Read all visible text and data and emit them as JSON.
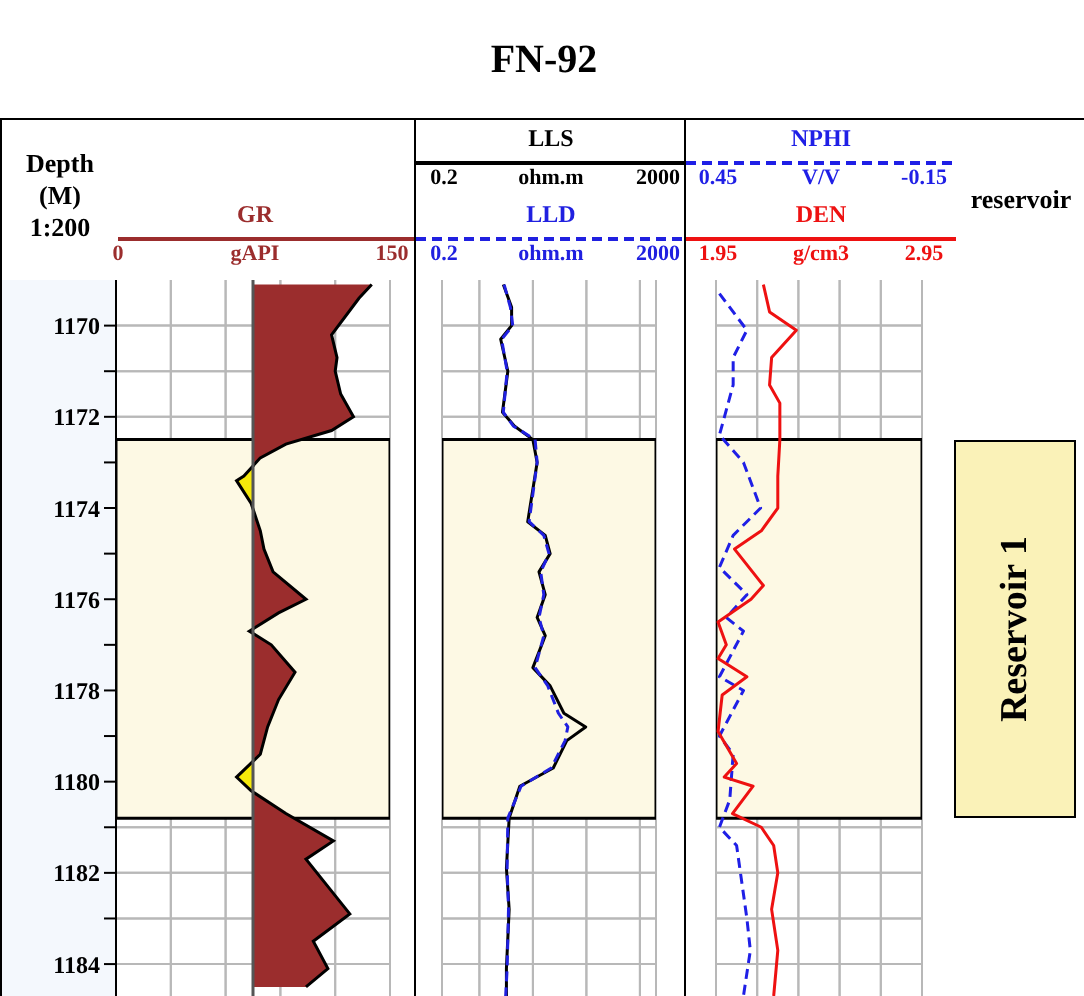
{
  "chart_data": [
    {
      "type": "area",
      "orientation": "horizontal",
      "ylabel": "Depth\n(M)\n1:200",
      "xlabel": "gAPI",
      "xlim": [
        0,
        150
      ],
      "xticks": [
        0,
        {
          "value": 30,
          "label": null
        },
        {
          "value": 60,
          "label": null
        },
        {
          "value": 90,
          "label": null
        },
        {
          "value": 120,
          "label": null
        },
        150
      ],
      "ylim": [
        1184.7,
        1169
      ],
      "yticks": [
        1170,
        {
          "value": 1171,
          "label": null
        },
        1172,
        {
          "value": 1173,
          "label": null
        },
        1174,
        {
          "value": 1175,
          "label": null
        },
        1176,
        {
          "value": 1177,
          "label": null
        },
        1178,
        {
          "value": 1179,
          "label": null
        },
        1180,
        {
          "value": 1181,
          "label": null
        },
        1182,
        {
          "value": 1183,
          "label": null
        },
        1184
      ],
      "grid": true,
      "ref_lines": [
        {
          "axis": "x",
          "value": 75
        }
      ],
      "bands": [
        {
          "axis": "y",
          "from": 1172.5,
          "to": 1180.8,
          "color": "#fdf9e4"
        }
      ],
      "series": [
        {
          "name": "GR",
          "color": "#9b2d2d",
          "x": [
            1169.1,
            1169.4,
            1170.2,
            1170.7,
            1171.0,
            1171.5,
            1172.0,
            1172.3,
            1172.6,
            1172.9,
            1173.3,
            1173.4,
            1173.9,
            1174.5,
            1174.9,
            1175.4,
            1176.0,
            1176.3,
            1176.7,
            1177.0,
            1177.6,
            1178.2,
            1178.8,
            1179.4,
            1179.9,
            1180.2,
            1180.7,
            1181.3,
            1181.7,
            1182.9,
            1183.5,
            1184.1,
            1184.5
          ],
          "values": [
            140,
            133,
            118,
            121,
            120,
            123,
            130,
            118,
            93,
            79,
            70,
            66,
            74,
            79,
            81,
            86,
            104,
            89,
            73,
            85,
            98,
            89,
            83,
            79,
            66,
            74,
            93,
            119,
            104,
            128,
            108,
            116,
            104
          ]
        }
      ]
    },
    {
      "type": "line",
      "orientation": "horizontal",
      "title": "FN-92",
      "log": "x",
      "tick_labels": "x",
      "xlabel": "ohm.m",
      "x2label": "ohm.m",
      "xlim": [
        0.2,
        2000
      ],
      "xticks": [
        0.2,
        {
          "value": 1,
          "label": null
        },
        {
          "value": 10,
          "label": null
        },
        {
          "value": 100,
          "label": null
        },
        {
          "value": 1000,
          "label": null
        },
        2000
      ],
      "x2lim": [
        0.2,
        2000
      ],
      "x2ticks": [
        0.2,
        2000
      ],
      "ylim": [
        1184.7,
        1169
      ],
      "yticks": [
        {
          "value": 1170,
          "label": null
        },
        {
          "value": 1171,
          "label": null
        },
        {
          "value": 1172,
          "label": null
        },
        {
          "value": 1173,
          "label": null
        },
        {
          "value": 1174,
          "label": null
        },
        {
          "value": 1175,
          "label": null
        },
        {
          "value": 1176,
          "label": null
        },
        {
          "value": 1177,
          "label": null
        },
        {
          "value": 1178,
          "label": null
        },
        {
          "value": 1179,
          "label": null
        },
        {
          "value": 1180,
          "label": null
        },
        {
          "value": 1181,
          "label": null
        },
        {
          "value": 1182,
          "label": null
        },
        {
          "value": 1183,
          "label": null
        },
        {
          "value": 1184,
          "label": null
        }
      ],
      "grid": true,
      "bands": [
        {
          "axis": "y",
          "from": 1172.5,
          "to": 1180.8,
          "color": "#fdf9e4"
        }
      ],
      "series": [
        {
          "name": "LLS",
          "color": "#000000",
          "x": [
            1169.1,
            1169.6,
            1170.0,
            1170.3,
            1171.0,
            1171.9,
            1172.2,
            1172.5,
            1173.0,
            1174.3,
            1174.6,
            1175.0,
            1175.4,
            1175.9,
            1176.4,
            1176.8,
            1177.5,
            1177.9,
            1178.5,
            1178.8,
            1179.1,
            1179.7,
            1180.1,
            1180.8,
            1181.9,
            1182.8,
            1184.1,
            1184.7
          ],
          "values": [
            2.8,
            4,
            4,
            2.5,
            3.4,
            2.7,
            4.5,
            10,
            12,
            8,
            17,
            21,
            13,
            17,
            12,
            17,
            10,
            21,
            38,
            97,
            43,
            24,
            5.7,
            3.6,
            3.2,
            3.6,
            3.2,
            3.2
          ]
        },
        {
          "name": "LLD",
          "color": "#2020e0",
          "line_style": "dashed",
          "x": [
            1169.1,
            1169.6,
            1170.0,
            1170.3,
            1171.0,
            1171.9,
            1172.2,
            1172.5,
            1173.0,
            1174.3,
            1174.6,
            1175.0,
            1175.4,
            1175.9,
            1176.4,
            1176.8,
            1177.5,
            1177.9,
            1178.5,
            1178.8,
            1179.1,
            1179.7,
            1180.1,
            1180.8,
            1181.9,
            1182.8,
            1184.1,
            1184.7
          ],
          "values": [
            2.9,
            3.8,
            4.2,
            2.6,
            3.3,
            2.8,
            4.3,
            11,
            12,
            8.5,
            16,
            20,
            14,
            16,
            13,
            16,
            11,
            19,
            30,
            45,
            40,
            22,
            6,
            3.4,
            3.3,
            3.5,
            3.3,
            3.1
          ]
        }
      ]
    },
    {
      "type": "line",
      "orientation": "horizontal",
      "tick_labels": "x",
      "xlabel": "g/cm3",
      "x2label": "V/V",
      "xlim": [
        1.95,
        2.95
      ],
      "xticks": [
        1.95,
        {
          "value": 2.15,
          "label": null
        },
        {
          "value": 2.35,
          "label": null
        },
        {
          "value": 2.55,
          "label": null
        },
        {
          "value": 2.75,
          "label": null
        },
        2.95
      ],
      "x2lim": [
        0.45,
        -0.15
      ],
      "x2ticks": [
        0.45,
        -0.15
      ],
      "ylim": [
        1184.7,
        1169
      ],
      "yticks": [
        {
          "value": 1170,
          "label": null
        },
        {
          "value": 1171,
          "label": null
        },
        {
          "value": 1172,
          "label": null
        },
        {
          "value": 1173,
          "label": null
        },
        {
          "value": 1174,
          "label": null
        },
        {
          "value": 1175,
          "label": null
        },
        {
          "value": 1176,
          "label": null
        },
        {
          "value": 1177,
          "label": null
        },
        {
          "value": 1178,
          "label": null
        },
        {
          "value": 1179,
          "label": null
        },
        {
          "value": 1180,
          "label": null
        },
        {
          "value": 1181,
          "label": null
        },
        {
          "value": 1182,
          "label": null
        },
        {
          "value": 1183,
          "label": null
        },
        {
          "value": 1184,
          "label": null
        }
      ],
      "grid": true,
      "annotations": [
        "reservoir"
      ],
      "bands": [
        {
          "axis": "y",
          "from": 1172.5,
          "to": 1180.8,
          "color": "#fdf9e4",
          "label": "Reservoir 1"
        }
      ],
      "series": [
        {
          "name": "NPHI",
          "axis": "x2",
          "color": "#1f1fe6",
          "line_style": "dashed",
          "x": [
            1169.3,
            1170.1,
            1170.7,
            1171.3,
            1172.4,
            1173.0,
            1174.0,
            1174.6,
            1175.3,
            1175.9,
            1176.4,
            1176.7,
            1177.7,
            1178.0,
            1179.0,
            1179.4,
            1180.4,
            1181.0,
            1181.4,
            1183.0,
            1183.7,
            1184.7
          ],
          "values": [
            0.44,
            0.36,
            0.4,
            0.4,
            0.44,
            0.37,
            0.32,
            0.4,
            0.44,
            0.36,
            0.42,
            0.37,
            0.44,
            0.37,
            0.44,
            0.4,
            0.41,
            0.44,
            0.39,
            0.36,
            0.35,
            0.37
          ]
        },
        {
          "name": "DEN",
          "color": "#ee1111",
          "x": [
            1169.1,
            1169.7,
            1170.1,
            1170.7,
            1171.3,
            1171.7,
            1172.5,
            1173.3,
            1174.0,
            1174.5,
            1174.9,
            1175.7,
            1176.0,
            1176.5,
            1177.0,
            1177.3,
            1177.7,
            1178.1,
            1178.9,
            1179.6,
            1179.9,
            1180.1,
            1180.7,
            1181.0,
            1181.4,
            1182.0,
            1182.8,
            1183.7,
            1184.7
          ],
          "values": [
            2.18,
            2.21,
            2.34,
            2.22,
            2.21,
            2.26,
            2.26,
            2.25,
            2.25,
            2.17,
            2.04,
            2.18,
            2.12,
            1.96,
            2.0,
            1.96,
            2.1,
            1.98,
            1.96,
            2.05,
            1.99,
            2.13,
            2.03,
            2.17,
            2.23,
            2.25,
            2.22,
            2.25,
            2.23
          ]
        }
      ]
    }
  ]
}
